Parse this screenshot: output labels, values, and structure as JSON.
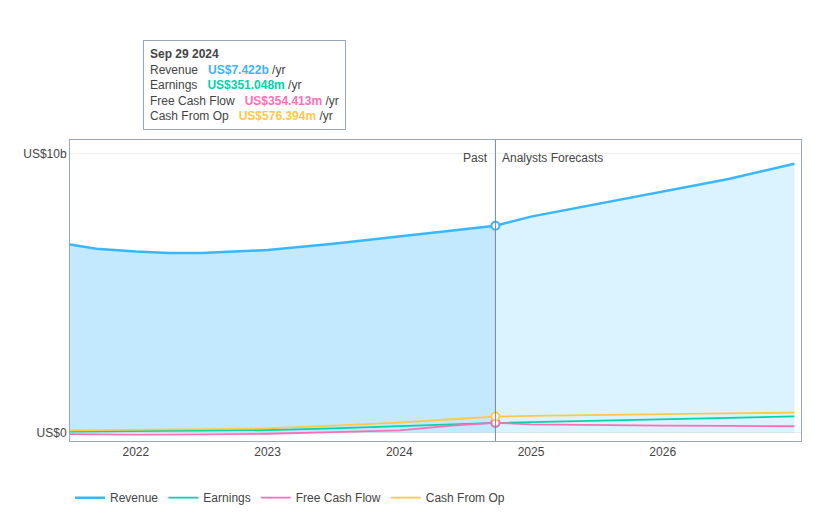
{
  "chart_data": {
    "type": "line",
    "xlim": [
      2021.5,
      2027.05
    ],
    "xticks": [
      2022,
      2023,
      2024,
      2025,
      2026
    ],
    "ylim": [
      -0.3,
      10.5
    ],
    "yticks": [
      {
        "value": 0,
        "label": "US$0"
      },
      {
        "value": 10,
        "label": "US$10b"
      }
    ],
    "grid": true,
    "legend": "bottom",
    "series": [
      {
        "name": "Revenue",
        "color": "#38b6ff",
        "type": "area",
        "x": [
          2021.5,
          2021.7,
          2022.0,
          2022.25,
          2022.5,
          2023.0,
          2023.5,
          2024.0,
          2024.4,
          2024.73,
          2025.0,
          2025.5,
          2026.0,
          2026.5,
          2027.0
        ],
        "values": [
          6.75,
          6.6,
          6.5,
          6.45,
          6.45,
          6.55,
          6.78,
          7.05,
          7.25,
          7.422,
          7.75,
          8.2,
          8.65,
          9.1,
          9.65
        ]
      },
      {
        "name": "Earnings",
        "color": "#00d4aa",
        "type": "line",
        "x": [
          2021.5,
          2022.0,
          2022.5,
          2023.0,
          2023.5,
          2024.0,
          2024.4,
          2024.73,
          2025.0,
          2025.5,
          2026.0,
          2026.5,
          2027.0
        ],
        "values": [
          0.04,
          0.05,
          0.06,
          0.09,
          0.15,
          0.22,
          0.3,
          0.351,
          0.38,
          0.43,
          0.48,
          0.53,
          0.58
        ]
      },
      {
        "name": "Free Cash Flow",
        "color": "#ff6eb4",
        "type": "line",
        "x": [
          2021.5,
          2022.0,
          2022.5,
          2023.0,
          2023.5,
          2024.0,
          2024.4,
          2024.73,
          2025.0,
          2025.5,
          2026.0,
          2026.5,
          2027.0
        ],
        "values": [
          -0.05,
          -0.07,
          -0.06,
          -0.04,
          0.02,
          0.08,
          0.25,
          0.354,
          0.3,
          0.27,
          0.25,
          0.24,
          0.23
        ]
      },
      {
        "name": "Cash From Op",
        "color": "#ffc845",
        "type": "line",
        "x": [
          2021.5,
          2022.0,
          2022.5,
          2023.0,
          2023.5,
          2024.0,
          2024.4,
          2024.73,
          2025.0,
          2025.5,
          2026.0,
          2026.5,
          2027.0
        ],
        "values": [
          0.08,
          0.1,
          0.11,
          0.15,
          0.25,
          0.36,
          0.48,
          0.576,
          0.6,
          0.63,
          0.66,
          0.69,
          0.72
        ]
      }
    ],
    "annotations": [
      {
        "text": "Past",
        "x": 2024.73
      },
      {
        "text": "Analysts Forecasts",
        "x": 2024.73
      }
    ],
    "tooltip": {
      "title": "Sep 29 2024",
      "x": 2024.73,
      "rows": [
        {
          "name": "Revenue",
          "color": "#38b6ff",
          "value": 7.422,
          "value_label": "US$7.422b",
          "suffix": " /yr"
        },
        {
          "name": "Earnings",
          "color": "#00d4aa",
          "value": 0.351048,
          "value_label": "US$351.048m",
          "suffix": " /yr"
        },
        {
          "name": "Free Cash Flow",
          "color": "#ff6eb4",
          "value": 0.354413,
          "value_label": "US$354.413m",
          "suffix": " /yr"
        },
        {
          "name": "Cash From Op",
          "color": "#ffc845",
          "value": 0.576394,
          "value_label": "US$576.394m",
          "suffix": " /yr"
        }
      ]
    }
  }
}
